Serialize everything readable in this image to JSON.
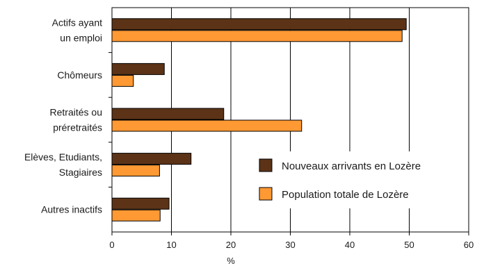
{
  "chart_data": {
    "type": "bar",
    "orientation": "horizontal",
    "categories": [
      [
        "Actifs ayant",
        "un emploi"
      ],
      [
        "Chômeurs"
      ],
      [
        "Retraités ou",
        "préretraités"
      ],
      [
        "Elèves, Etudiants,",
        "Stagiaires"
      ],
      [
        "Autres inactifs"
      ]
    ],
    "series": [
      {
        "name": "Nouveaux arrivants en Lozère",
        "color": "#5c3317",
        "values": [
          49.5,
          8.8,
          18.8,
          13.3,
          9.6
        ]
      },
      {
        "name": "Population totale de Lozère",
        "color": "#ff9933",
        "values": [
          48.8,
          3.6,
          31.9,
          8.0,
          8.1
        ]
      }
    ],
    "xlabel": "%",
    "xlim": [
      0,
      60
    ],
    "xticks": [
      "0",
      "10",
      "20",
      "30",
      "40",
      "50",
      "60"
    ],
    "grid": true,
    "legend_position": "right"
  }
}
